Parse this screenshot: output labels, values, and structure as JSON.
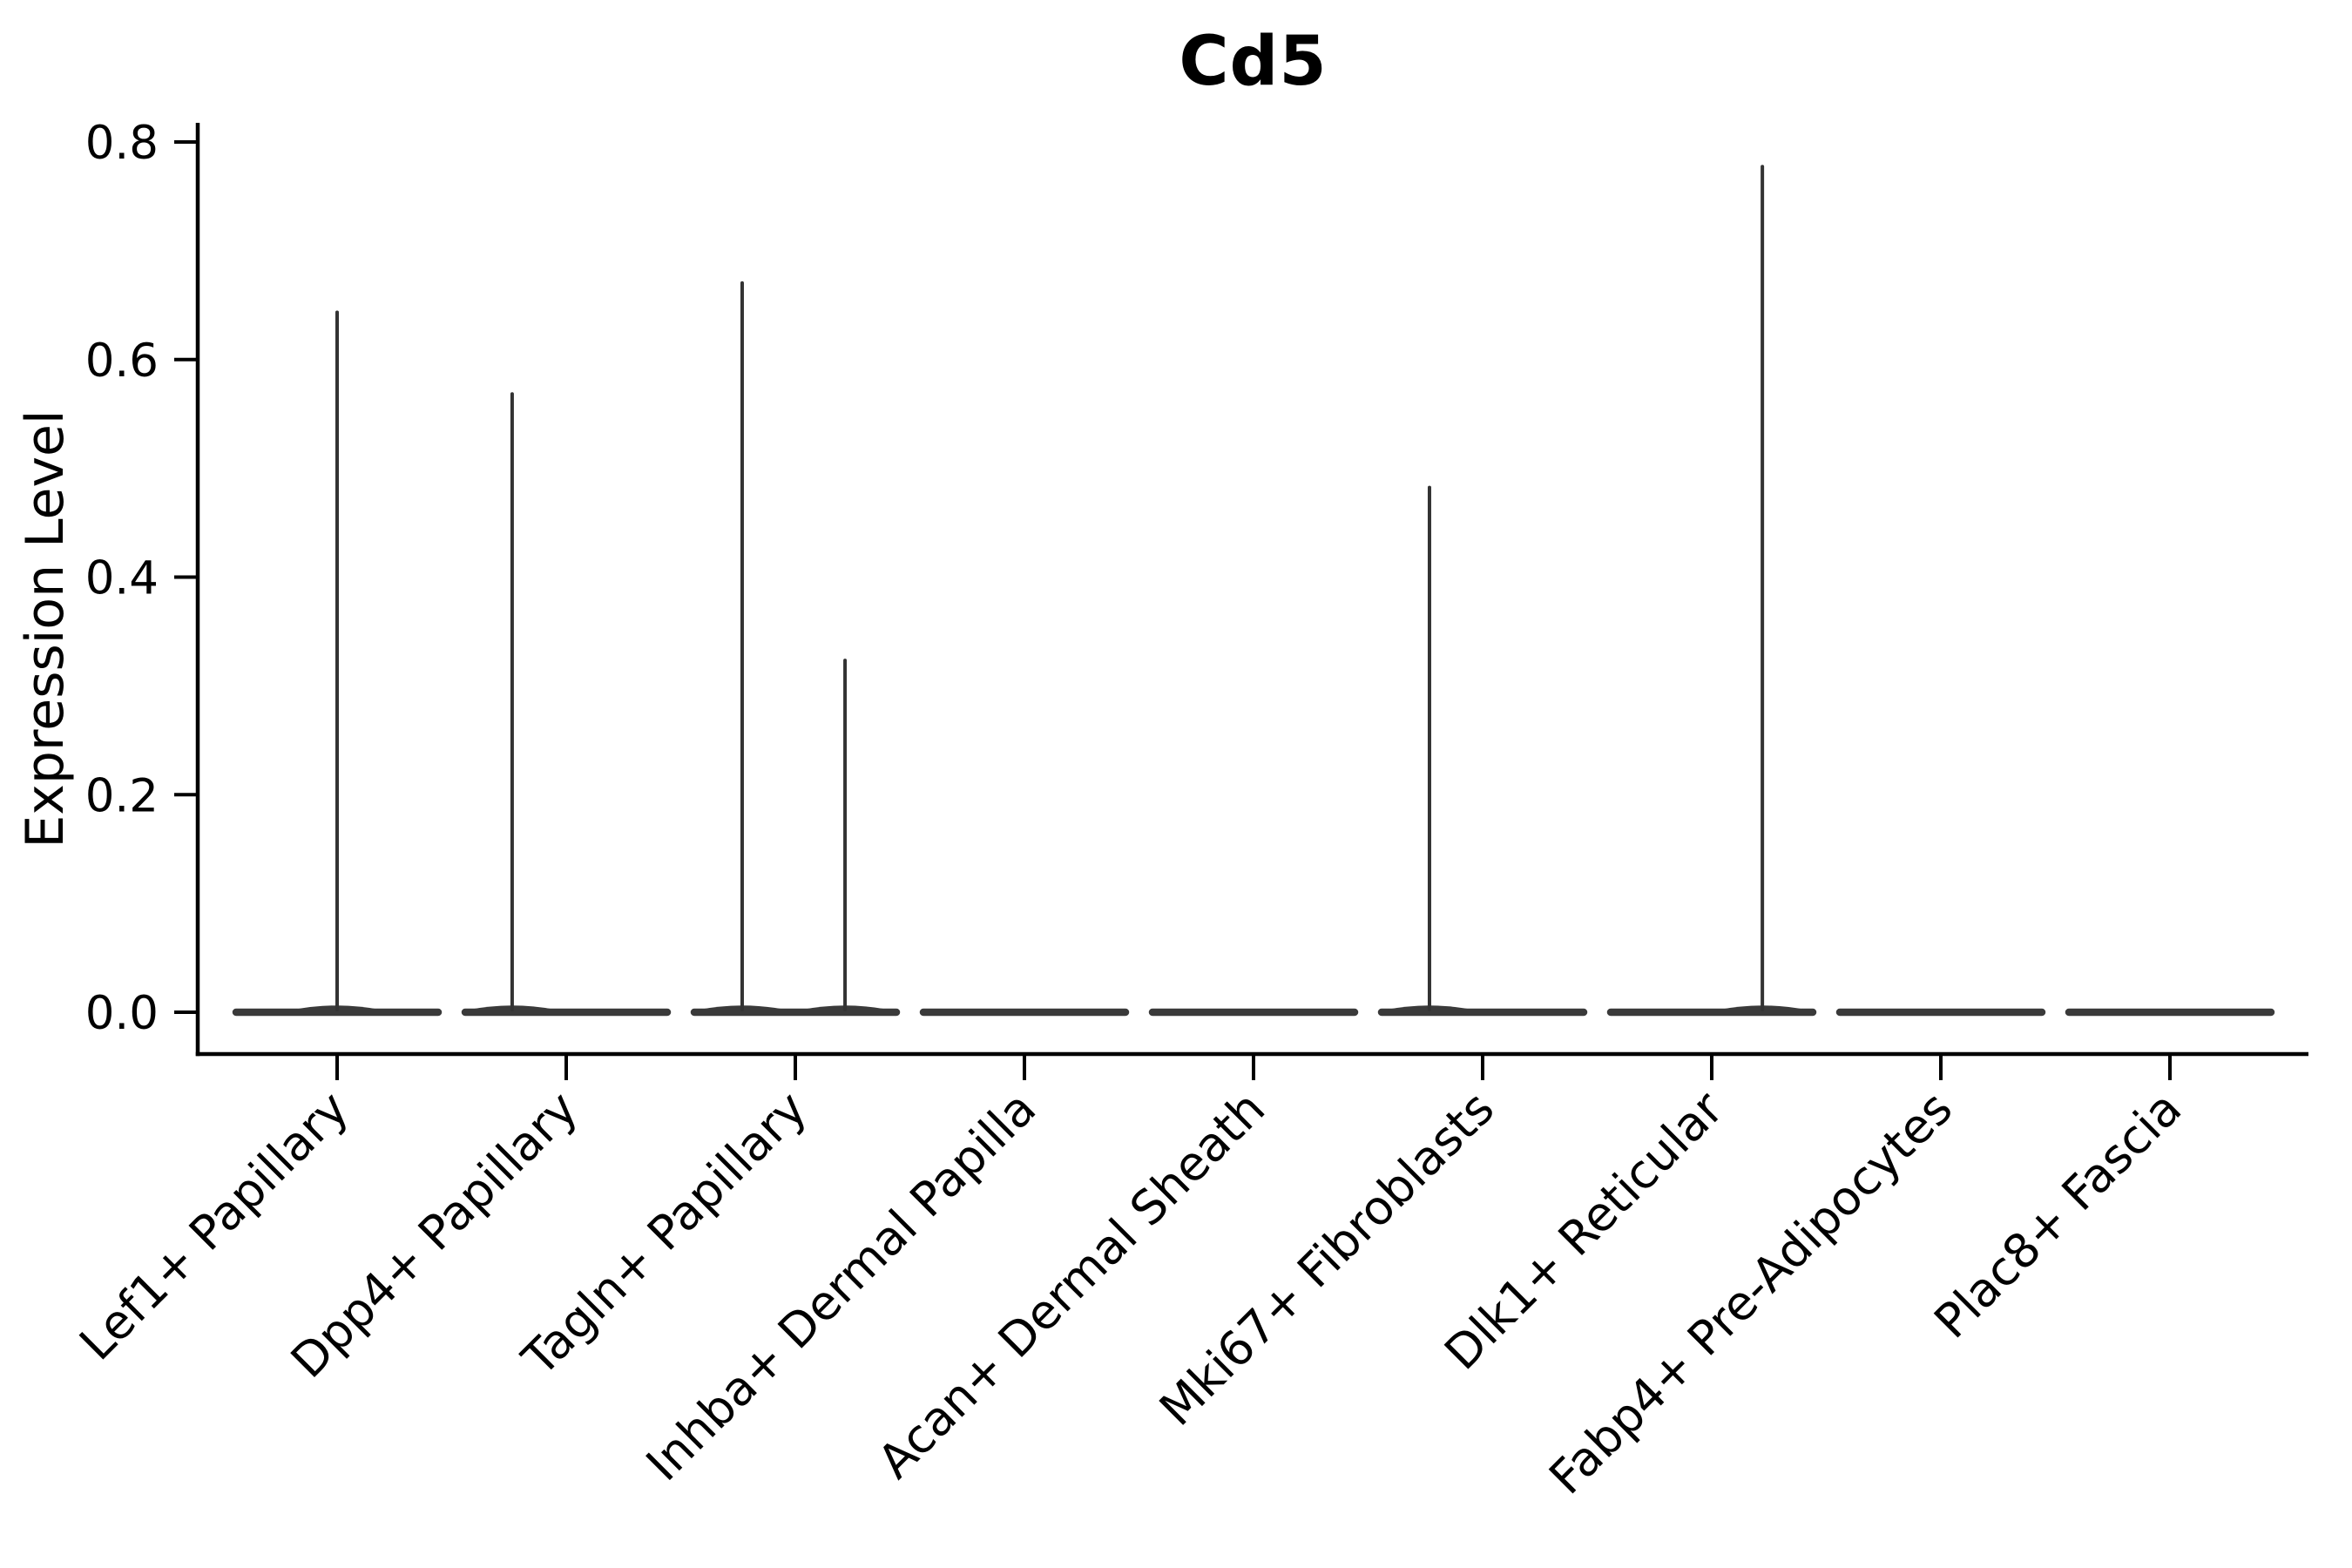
{
  "figure": {
    "background": "#ffffff"
  },
  "chart_data": {
    "type": "violin",
    "title": "Cd5",
    "ylabel": "Expression Level",
    "xlabel": "",
    "ylim": [
      0,
      0.8
    ],
    "yticks": [
      0.0,
      0.2,
      0.4,
      0.6,
      0.8
    ],
    "ytick_labels": [
      "0.0",
      "0.2",
      "0.4",
      "0.6",
      "0.8"
    ],
    "grid": false,
    "legend": false,
    "categories": [
      "Lef1+ Papillary",
      "Dpp4+ Papillary",
      "Tagln+ Papillary",
      "Inhba+ Dermal Papilla",
      "Acan+ Dermal Sheath",
      "Mki67+ Fibroblasts",
      "Dlk1+ Reticular",
      "Fabp4+ Pre-Adipocytes",
      "Plac8+ Fascia"
    ],
    "violins": [
      {
        "category": "Lef1+ Papillary",
        "zero_body": true,
        "peaks": [
          {
            "value": 0.645,
            "x_offset": 0.0
          }
        ]
      },
      {
        "category": "Dpp4+ Papillary",
        "zero_body": true,
        "peaks": [
          {
            "value": 0.57,
            "x_offset": -0.236
          }
        ]
      },
      {
        "category": "Tagln+ Papillary",
        "zero_body": true,
        "peaks": [
          {
            "value": 0.672,
            "x_offset": -0.232
          },
          {
            "value": 0.325,
            "x_offset": 0.217
          }
        ]
      },
      {
        "category": "Inhba+ Dermal Papilla",
        "zero_body": true,
        "peaks": []
      },
      {
        "category": "Acan+ Dermal Sheath",
        "zero_body": true,
        "peaks": []
      },
      {
        "category": "Mki67+ Fibroblasts",
        "zero_body": true,
        "peaks": [
          {
            "value": 0.484,
            "x_offset": -0.232
          }
        ]
      },
      {
        "category": "Dlk1+ Reticular",
        "zero_body": true,
        "peaks": [
          {
            "value": 0.779,
            "x_offset": 0.221
          }
        ]
      },
      {
        "category": "Fabp4+ Pre-Adipocytes",
        "zero_body": true,
        "peaks": []
      },
      {
        "category": "Plac8+ Fascia",
        "zero_body": true,
        "peaks": []
      }
    ],
    "colors": {
      "violin": "#3a3a3a",
      "spike": "#333333",
      "axis": "#000000",
      "text": "#000000"
    }
  }
}
